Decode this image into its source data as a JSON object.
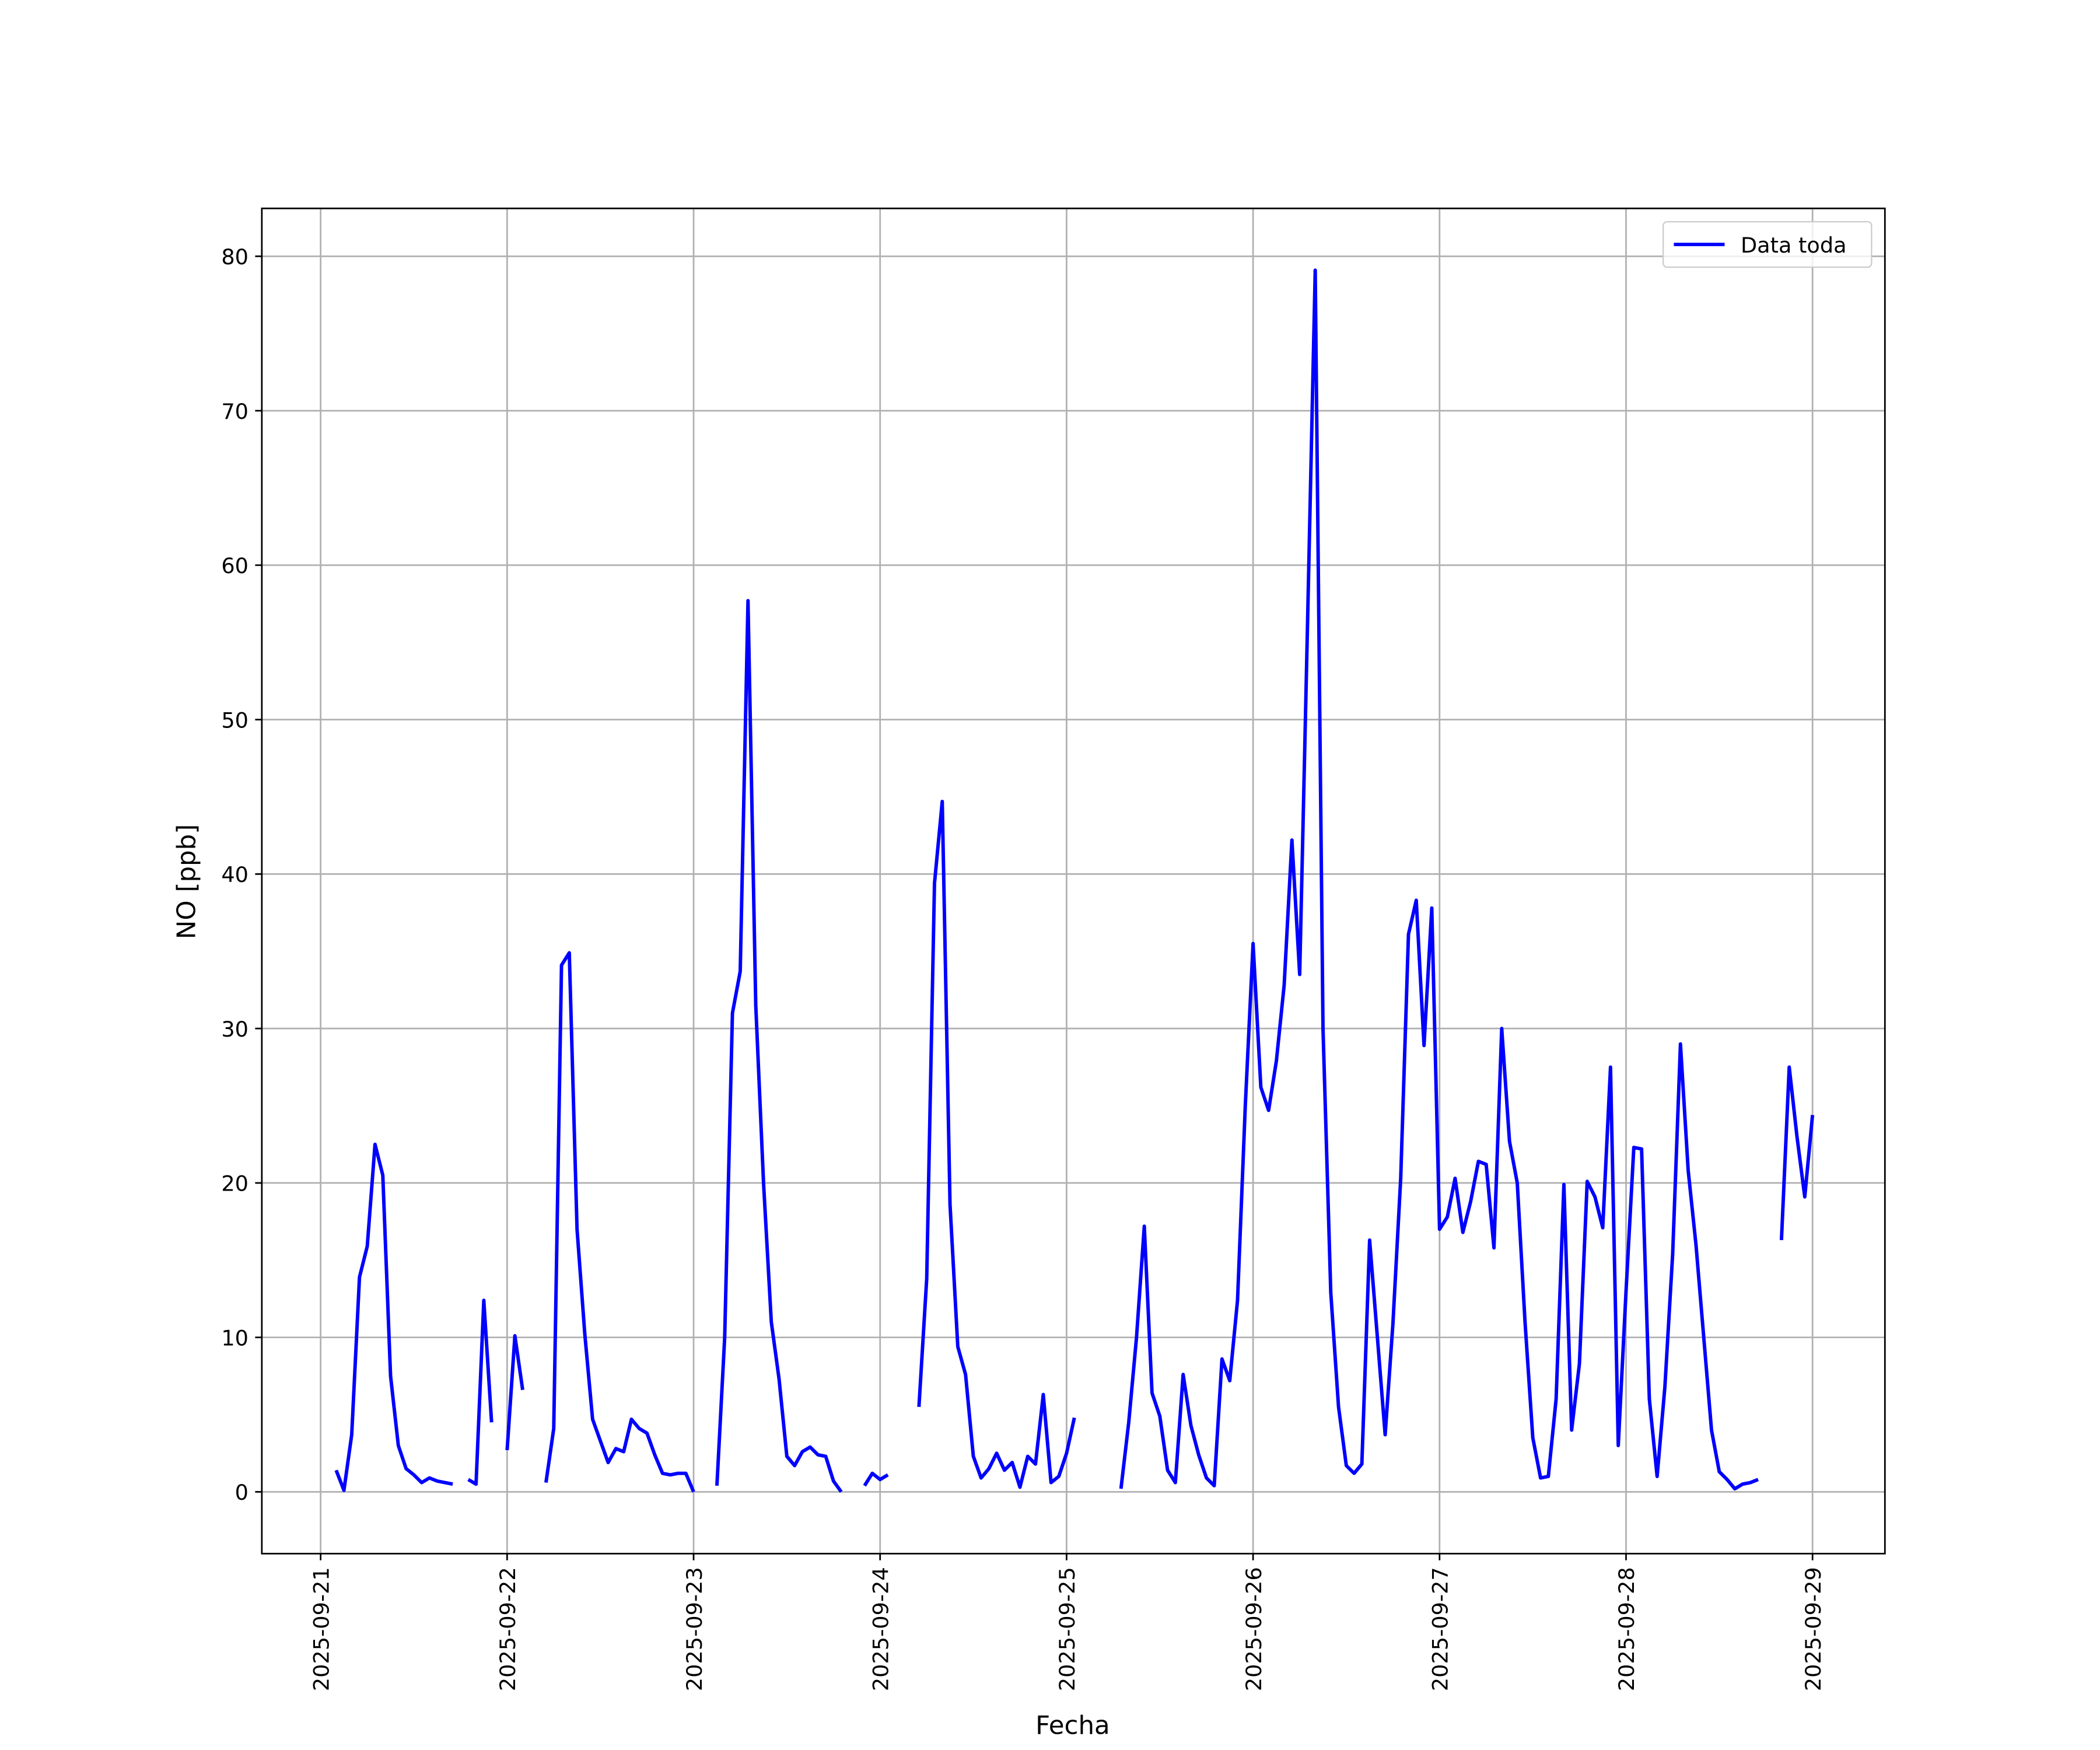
{
  "chart_data": {
    "type": "line",
    "xlabel": "Fecha",
    "ylabel": "NO [ppb]",
    "x": [
      "2025-09-21 02:00",
      "2025-09-21 03:00",
      "2025-09-21 04:00",
      "2025-09-21 05:00",
      "2025-09-21 06:00",
      "2025-09-21 07:00",
      "2025-09-21 08:00",
      "2025-09-21 09:00",
      "2025-09-21 10:00",
      "2025-09-21 11:00",
      "2025-09-21 12:00",
      "2025-09-21 13:00",
      "2025-09-21 14:00",
      "2025-09-21 15:00",
      "2025-09-21 16:00",
      "2025-09-21 17:00",
      "2025-09-21 18:00",
      "2025-09-21 19:00",
      "2025-09-21 20:00",
      "2025-09-21 21:00",
      "2025-09-21 22:00",
      "2025-09-21 23:00",
      "2025-09-22 00:00",
      "2025-09-22 01:00",
      "2025-09-22 02:00",
      "2025-09-22 03:00",
      "2025-09-22 04:00",
      "2025-09-22 05:00",
      "2025-09-22 06:00",
      "2025-09-22 07:00",
      "2025-09-22 08:00",
      "2025-09-22 09:00",
      "2025-09-22 10:00",
      "2025-09-22 11:00",
      "2025-09-22 12:00",
      "2025-09-22 13:00",
      "2025-09-22 14:00",
      "2025-09-22 15:00",
      "2025-09-22 16:00",
      "2025-09-22 17:00",
      "2025-09-22 18:00",
      "2025-09-22 19:00",
      "2025-09-22 20:00",
      "2025-09-22 21:00",
      "2025-09-22 22:00",
      "2025-09-22 23:00",
      "2025-09-23 00:00",
      "2025-09-23 01:00",
      "2025-09-23 02:00",
      "2025-09-23 03:00",
      "2025-09-23 04:00",
      "2025-09-23 05:00",
      "2025-09-23 06:00",
      "2025-09-23 07:00",
      "2025-09-23 08:00",
      "2025-09-23 09:00",
      "2025-09-23 10:00",
      "2025-09-23 11:00",
      "2025-09-23 12:00",
      "2025-09-23 13:00",
      "2025-09-23 14:00",
      "2025-09-23 15:00",
      "2025-09-23 16:00",
      "2025-09-23 17:00",
      "2025-09-23 18:00",
      "2025-09-23 19:00",
      "2025-09-23 20:00",
      "2025-09-23 21:00",
      "2025-09-23 22:00",
      "2025-09-23 23:00",
      "2025-09-24 00:00",
      "2025-09-24 01:00",
      "2025-09-24 02:00",
      "2025-09-24 03:00",
      "2025-09-24 04:00",
      "2025-09-24 05:00",
      "2025-09-24 06:00",
      "2025-09-24 07:00",
      "2025-09-24 08:00",
      "2025-09-24 09:00",
      "2025-09-24 10:00",
      "2025-09-24 11:00",
      "2025-09-24 12:00",
      "2025-09-24 13:00",
      "2025-09-24 14:00",
      "2025-09-24 15:00",
      "2025-09-24 16:00",
      "2025-09-24 17:00",
      "2025-09-24 18:00",
      "2025-09-24 19:00",
      "2025-09-24 20:00",
      "2025-09-24 21:00",
      "2025-09-24 22:00",
      "2025-09-24 23:00",
      "2025-09-25 00:00",
      "2025-09-25 01:00",
      "2025-09-25 02:00",
      "2025-09-25 03:00",
      "2025-09-25 04:00",
      "2025-09-25 05:00",
      "2025-09-25 06:00",
      "2025-09-25 07:00",
      "2025-09-25 08:00",
      "2025-09-25 09:00",
      "2025-09-25 10:00",
      "2025-09-25 11:00",
      "2025-09-25 12:00",
      "2025-09-25 13:00",
      "2025-09-25 14:00",
      "2025-09-25 15:00",
      "2025-09-25 16:00",
      "2025-09-25 17:00",
      "2025-09-25 18:00",
      "2025-09-25 19:00",
      "2025-09-25 20:00",
      "2025-09-25 21:00",
      "2025-09-25 22:00",
      "2025-09-25 23:00",
      "2025-09-26 00:00",
      "2025-09-26 01:00",
      "2025-09-26 02:00",
      "2025-09-26 03:00",
      "2025-09-26 04:00",
      "2025-09-26 05:00",
      "2025-09-26 06:00",
      "2025-09-26 07:00",
      "2025-09-26 08:00",
      "2025-09-26 09:00",
      "2025-09-26 10:00",
      "2025-09-26 11:00",
      "2025-09-26 12:00",
      "2025-09-26 13:00",
      "2025-09-26 14:00",
      "2025-09-26 15:00",
      "2025-09-26 16:00",
      "2025-09-26 17:00",
      "2025-09-26 18:00",
      "2025-09-26 19:00",
      "2025-09-26 20:00",
      "2025-09-26 21:00",
      "2025-09-26 22:00",
      "2025-09-26 23:00",
      "2025-09-27 00:00",
      "2025-09-27 01:00",
      "2025-09-27 02:00",
      "2025-09-27 03:00",
      "2025-09-27 04:00",
      "2025-09-27 05:00",
      "2025-09-27 06:00",
      "2025-09-27 07:00",
      "2025-09-27 08:00",
      "2025-09-27 09:00",
      "2025-09-27 10:00",
      "2025-09-27 11:00",
      "2025-09-27 12:00",
      "2025-09-27 13:00",
      "2025-09-27 14:00",
      "2025-09-27 15:00",
      "2025-09-27 16:00",
      "2025-09-27 17:00",
      "2025-09-27 18:00",
      "2025-09-27 19:00",
      "2025-09-27 20:00",
      "2025-09-27 21:00",
      "2025-09-27 22:00",
      "2025-09-27 23:00",
      "2025-09-28 00:00",
      "2025-09-28 01:00",
      "2025-09-28 02:00",
      "2025-09-28 03:00",
      "2025-09-28 04:00",
      "2025-09-28 05:00",
      "2025-09-28 06:00",
      "2025-09-28 07:00",
      "2025-09-28 08:00",
      "2025-09-28 09:00",
      "2025-09-28 10:00",
      "2025-09-28 11:00",
      "2025-09-28 12:00",
      "2025-09-28 13:00",
      "2025-09-28 14:00",
      "2025-09-28 15:00",
      "2025-09-28 16:00",
      "2025-09-28 17:00",
      "2025-09-28 18:00",
      "2025-09-28 19:00",
      "2025-09-28 20:00",
      "2025-09-28 21:00",
      "2025-09-28 22:00",
      "2025-09-28 23:00",
      "2025-09-29 00:00"
    ],
    "series": [
      {
        "name": "Data toda",
        "color": "#0000ff",
        "values": [
          1.4,
          0.1,
          3.7,
          13.9,
          15.9,
          22.5,
          20.5,
          7.5,
          3.0,
          1.5,
          1.1,
          0.6,
          0.9,
          0.7,
          0.6,
          0.5,
          null,
          0.8,
          0.5,
          12.4,
          4.5,
          null,
          2.7,
          10.1,
          6.6,
          null,
          null,
          0.6,
          4.1,
          34.1,
          34.9,
          17.0,
          10.2,
          4.7,
          3.3,
          1.9,
          2.8,
          2.6,
          4.7,
          4.1,
          3.8,
          2.4,
          1.2,
          1.1,
          1.2,
          1.2,
          0.0,
          null,
          null,
          0.4,
          10.0,
          31.0,
          33.7,
          57.7,
          31.5,
          20.0,
          11.0,
          7.3,
          2.3,
          1.7,
          2.6,
          2.9,
          2.4,
          2.3,
          0.7,
          0.0,
          null,
          null,
          0.4,
          1.2,
          0.8,
          1.1,
          null,
          null,
          null,
          5.5,
          13.8,
          39.4,
          44.7,
          18.6,
          9.4,
          7.6,
          2.3,
          0.9,
          1.5,
          2.5,
          1.4,
          1.9,
          0.3,
          2.3,
          1.8,
          6.3,
          0.6,
          1.0,
          2.5,
          4.8,
          null,
          null,
          null,
          null,
          null,
          0.2,
          4.5,
          10.0,
          17.2,
          6.4,
          4.9,
          1.4,
          0.6,
          7.6,
          4.3,
          2.4,
          0.9,
          0.4,
          8.6,
          7.2,
          12.4,
          25.0,
          35.5,
          26.2,
          24.7,
          27.9,
          32.8,
          42.2,
          33.5,
          56.0,
          79.1,
          30.0,
          12.9,
          5.5,
          1.7,
          1.2,
          1.8,
          16.3,
          10.0,
          3.7,
          10.9,
          20.3,
          36.1,
          38.3,
          28.9,
          37.8,
          17.0,
          17.8,
          20.3,
          16.8,
          18.8,
          21.4,
          21.2,
          15.8,
          30.0,
          22.7,
          20.0,
          11.0,
          3.5,
          0.9,
          1.0,
          6.0,
          19.9,
          4.0,
          8.3,
          20.1,
          19.1,
          17.1,
          27.5,
          3.0,
          13.0,
          22.3,
          22.2,
          6.0,
          1.0,
          6.8,
          15.4,
          29.0,
          20.8,
          16.0,
          10.0,
          4.0,
          1.3,
          0.8,
          0.2,
          0.5,
          0.6,
          0.8,
          null,
          null,
          16.3,
          27.5,
          23.0,
          19.1,
          24.4
        ]
      }
    ],
    "xlim": [
      "2025-09-20 16:26",
      "2025-09-29 09:19"
    ],
    "xticks": [
      "2025-09-21",
      "2025-09-22",
      "2025-09-23",
      "2025-09-24",
      "2025-09-25",
      "2025-09-26",
      "2025-09-27",
      "2025-09-28",
      "2025-09-29"
    ],
    "ylim": [
      -4,
      83.1
    ],
    "yticks": [
      0,
      10,
      20,
      30,
      40,
      50,
      60,
      70,
      80
    ],
    "grid": true,
    "legend": "upper right"
  }
}
